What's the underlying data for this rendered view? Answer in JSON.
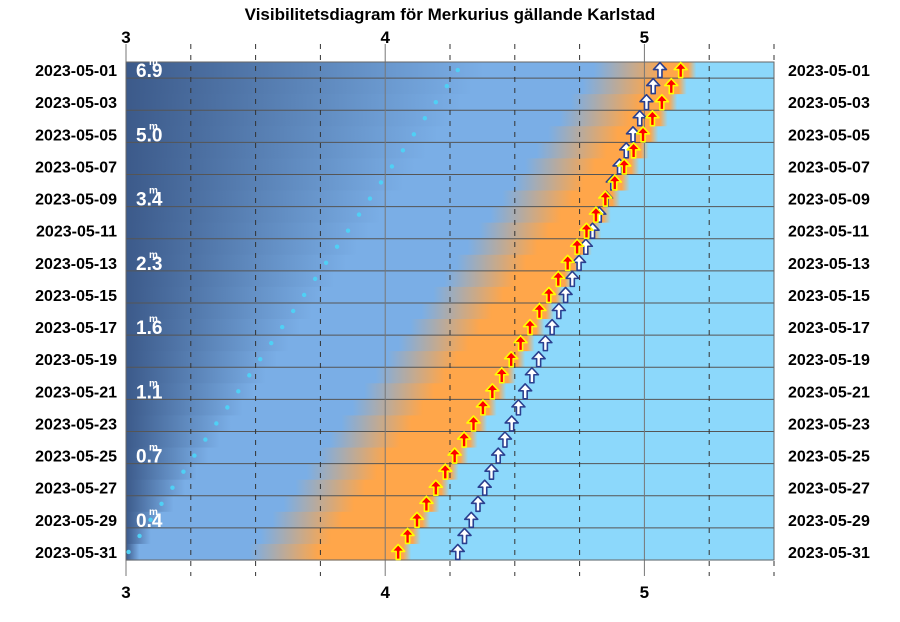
{
  "chart_data": {
    "type": "visibility-diagram",
    "title": "Visibilitetsdiagram för Merkurius gällande Karlstad",
    "x_range": [
      3,
      5.5
    ],
    "x_ticks": [
      {
        "value": 3,
        "label": "3"
      },
      {
        "value": 4,
        "label": "4"
      },
      {
        "value": 5,
        "label": "5"
      }
    ],
    "x_minor_ticks": [
      3.25,
      3.5,
      3.75,
      4.25,
      4.5,
      4.75,
      5.25,
      5.5
    ],
    "dates": [
      "2023-05-01",
      "2023-05-03",
      "2023-05-05",
      "2023-05-07",
      "2023-05-09",
      "2023-05-11",
      "2023-05-13",
      "2023-05-15",
      "2023-05-17",
      "2023-05-19",
      "2023-05-21",
      "2023-05-23",
      "2023-05-25",
      "2023-05-27",
      "2023-05-29",
      "2023-05-31"
    ],
    "magnitudes": [
      {
        "date": "2023-05-01",
        "text": "6.9"
      },
      {
        "date": "2023-05-05",
        "text": "5.0"
      },
      {
        "date": "2023-05-09",
        "text": "3.4"
      },
      {
        "date": "2023-05-13",
        "text": "2.3"
      },
      {
        "date": "2023-05-17",
        "text": "1.6"
      },
      {
        "date": "2023-05-21",
        "text": "1.1"
      },
      {
        "date": "2023-05-25",
        "text": "0.7"
      },
      {
        "date": "2023-05-29",
        "text": "0.4"
      }
    ],
    "mag_superscript": "m",
    "twilight_start": [
      4.96,
      3.63
    ],
    "sunrise": [
      5.2,
      4.1
    ],
    "mercury_rise": [
      4.28,
      3.01
    ],
    "white_arrows": [
      5.06,
      4.28
    ],
    "red_arrows": [
      5.14,
      4.05
    ],
    "colors": {
      "night": "#3c5a8a",
      "twilight_blue": "#7aaee6",
      "twilight_orange": "#ffa64a",
      "day": "#8cd8fb",
      "dots": "#4fd0f5",
      "white_arrow": "#ffffff",
      "red_arrow": "#ff0000",
      "arrow_outline": "#2a3f8f",
      "red_arrow_outline": "#ffff00"
    }
  }
}
